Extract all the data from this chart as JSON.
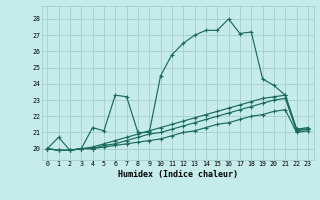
{
  "xlabel": "Humidex (Indice chaleur)",
  "xlim": [
    -0.5,
    23.5
  ],
  "ylim": [
    19.3,
    28.8
  ],
  "yticks": [
    20,
    21,
    22,
    23,
    24,
    25,
    26,
    27,
    28
  ],
  "xticks": [
    0,
    1,
    2,
    3,
    4,
    5,
    6,
    7,
    8,
    9,
    10,
    11,
    12,
    13,
    14,
    15,
    16,
    17,
    18,
    19,
    20,
    21,
    22,
    23
  ],
  "bg_color": "#c5ecea",
  "line_color": "#1a6b5a",
  "grid_color": "#a0c8c4",
  "curve_main": [
    20.0,
    20.7,
    19.9,
    20.0,
    21.3,
    21.1,
    23.3,
    23.2,
    21.0,
    21.0,
    24.5,
    25.8,
    26.5,
    27.0,
    27.3,
    27.3,
    28.0,
    27.1,
    27.2,
    24.3,
    23.9,
    23.3,
    21.2,
    21.2
  ],
  "curve_lin1": [
    20.0,
    19.9,
    19.9,
    20.0,
    20.1,
    20.3,
    20.5,
    20.7,
    20.9,
    21.1,
    21.3,
    21.5,
    21.7,
    21.9,
    22.1,
    22.3,
    22.5,
    22.7,
    22.9,
    23.1,
    23.2,
    23.3,
    21.2,
    21.3
  ],
  "curve_lin2": [
    20.0,
    19.9,
    19.9,
    20.0,
    20.0,
    20.2,
    20.3,
    20.5,
    20.7,
    20.9,
    21.0,
    21.2,
    21.4,
    21.6,
    21.8,
    22.0,
    22.2,
    22.4,
    22.6,
    22.8,
    23.0,
    23.1,
    21.1,
    21.2
  ],
  "curve_lin3": [
    20.0,
    19.9,
    19.9,
    20.0,
    20.0,
    20.1,
    20.2,
    20.3,
    20.4,
    20.5,
    20.6,
    20.8,
    21.0,
    21.1,
    21.3,
    21.5,
    21.6,
    21.8,
    22.0,
    22.1,
    22.3,
    22.4,
    21.0,
    21.1
  ]
}
